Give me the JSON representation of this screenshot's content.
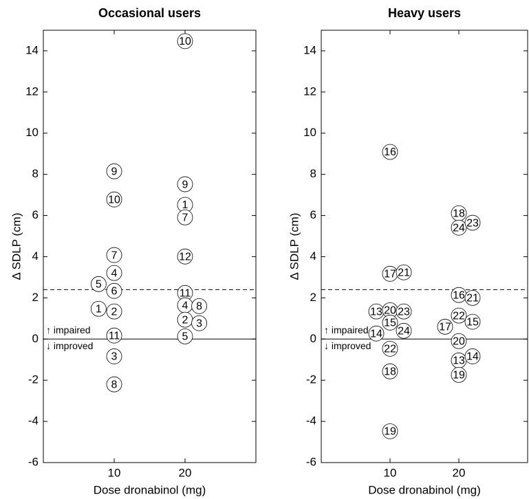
{
  "chart_data": [
    {
      "type": "scatter",
      "title": "Occasional users",
      "xlabel": "Dose dronabinol (mg)",
      "ylabel": "Δ SDLP (cm)",
      "xlim": [
        0,
        30
      ],
      "xticks": [
        10,
        20
      ],
      "ylim": [
        -6,
        15
      ],
      "yticks": [
        -6,
        -4,
        -2,
        0,
        2,
        4,
        6,
        8,
        10,
        12,
        14
      ],
      "x": [
        20,
        10,
        10,
        20,
        20,
        20,
        20,
        10,
        10,
        7.8,
        10,
        20,
        7.8,
        10,
        20,
        22,
        20,
        22,
        10,
        20,
        10,
        10
      ],
      "values": [
        14.47,
        8.15,
        6.78,
        7.52,
        6.52,
        5.91,
        4.01,
        4.08,
        3.21,
        2.67,
        2.34,
        2.24,
        1.47,
        1.34,
        1.64,
        1.6,
        0.94,
        0.77,
        0.17,
        0.13,
        -0.84,
        -2.2
      ],
      "labels": [
        "10",
        "9",
        "10",
        "9",
        "1",
        "7",
        "12",
        "7",
        "4",
        "5",
        "6",
        "11",
        "1",
        "2",
        "4",
        "8",
        "2",
        "3",
        "11",
        "5",
        "3",
        "8"
      ],
      "hlines": [
        {
          "value": 2.4,
          "style": "dashed"
        },
        {
          "value": 0,
          "style": "solid"
        }
      ],
      "annotations": [
        "↑ impaired",
        "↓ improved"
      ]
    },
    {
      "type": "scatter",
      "title": "Heavy users",
      "xlabel": "Dose dronabinol (mg)",
      "ylabel": "Δ SDLP (cm)",
      "xlim": [
        0,
        30
      ],
      "xticks": [
        10,
        20
      ],
      "ylim": [
        -6,
        15
      ],
      "yticks": [
        -6,
        -4,
        -2,
        0,
        2,
        4,
        6,
        8,
        10,
        12,
        14
      ],
      "x": [
        10,
        20,
        20,
        22,
        10,
        12,
        20,
        22,
        8,
        10,
        12,
        10,
        20,
        22,
        18,
        8,
        12,
        20,
        10,
        20,
        22,
        10,
        20,
        10
      ],
      "values": [
        9.09,
        6.11,
        5.41,
        5.65,
        3.17,
        3.24,
        2.14,
        2.0,
        1.34,
        1.4,
        1.34,
        0.8,
        1.14,
        0.84,
        0.6,
        0.27,
        0.4,
        -0.1,
        -0.47,
        -1.04,
        -0.84,
        -1.57,
        -1.74,
        -4.48
      ],
      "labels": [
        "16",
        "18",
        "24",
        "23",
        "17",
        "21",
        "16",
        "21",
        "13",
        "20",
        "23",
        "15",
        "22",
        "15",
        "17",
        "14",
        "24",
        "20",
        "22",
        "13",
        "14",
        "18",
        "19",
        "19"
      ],
      "hlines": [
        {
          "value": 2.4,
          "style": "dashed"
        },
        {
          "value": 0,
          "style": "solid"
        }
      ],
      "annotations": [
        "↑ impaired",
        "↓ improved"
      ]
    }
  ]
}
